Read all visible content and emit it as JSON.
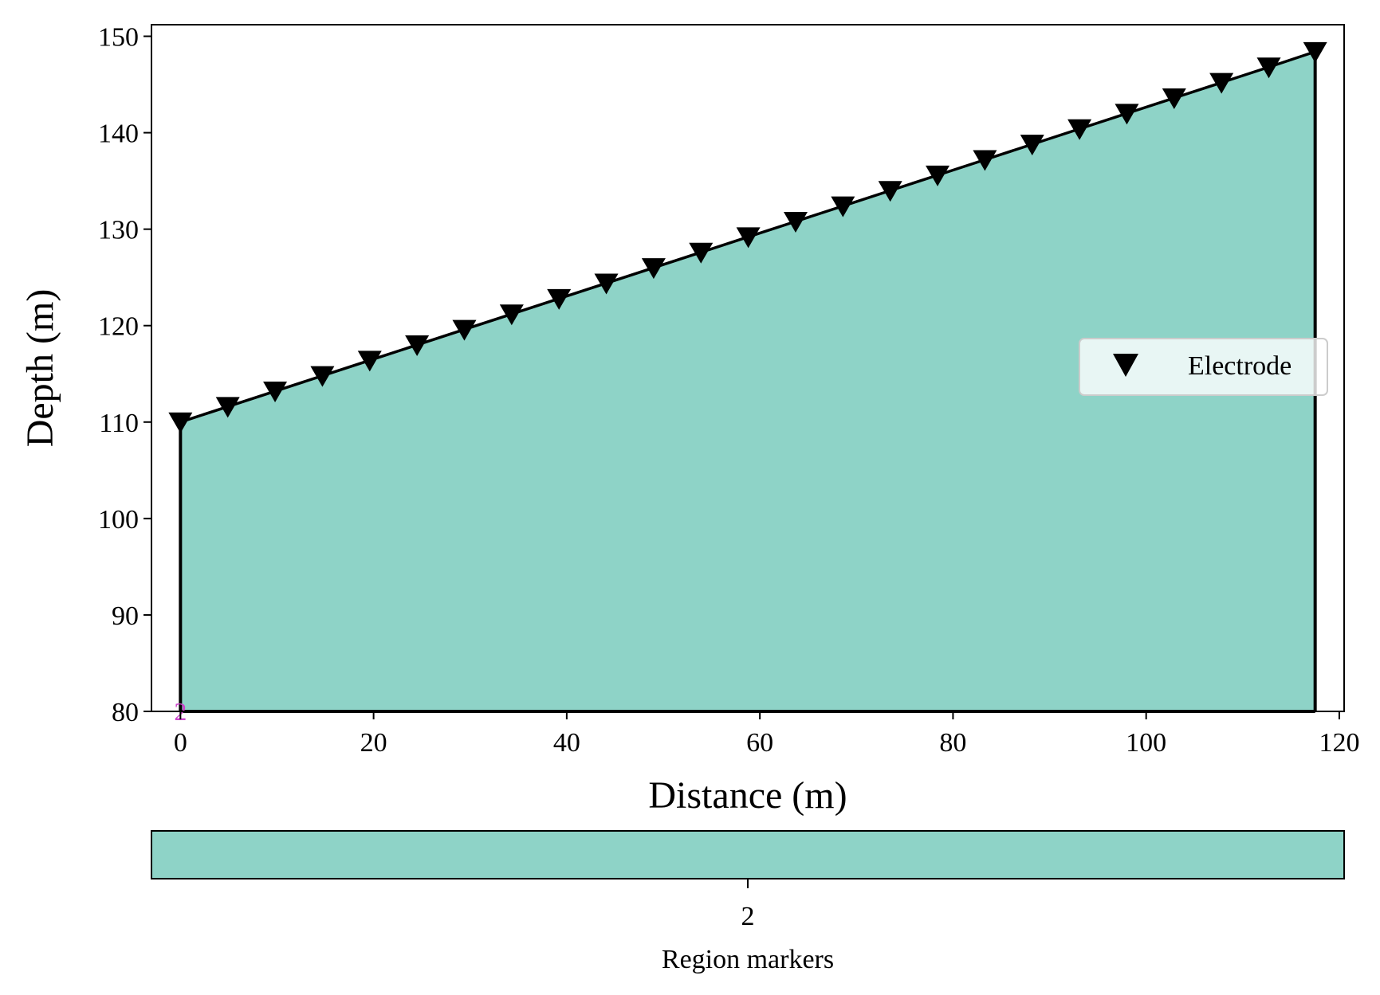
{
  "chart_data": {
    "type": "area",
    "xlabel": "Distance (m)",
    "ylabel": "Depth (m)",
    "xlim": [
      -3,
      120.5
    ],
    "ylim": [
      80,
      151.2
    ],
    "xticks": [
      0,
      20,
      40,
      60,
      80,
      100,
      120
    ],
    "xtick_labels": [
      "0",
      "20",
      "40",
      "60",
      "80",
      "100",
      "120"
    ],
    "yticks": [
      80,
      90,
      100,
      110,
      120,
      130,
      140,
      150
    ],
    "ytick_labels": [
      "80",
      "90",
      "100",
      "110",
      "120",
      "130",
      "140",
      "150"
    ],
    "grid": false,
    "region": {
      "marker": "2",
      "fill_color": "#8ed3c7",
      "bottom_depth": 80,
      "outline_color": "#000000"
    },
    "series": [
      {
        "name": "Electrode",
        "marker": "triangle-down",
        "color": "#000000",
        "x": [
          0,
          4.9,
          9.8,
          14.7,
          19.6,
          24.5,
          29.4,
          34.3,
          39.2,
          44.1,
          49.0,
          53.9,
          58.8,
          63.7,
          68.6,
          73.5,
          78.4,
          83.3,
          88.2,
          93.1,
          98.0,
          102.9,
          107.8,
          112.7,
          117.5
        ],
        "y": [
          110.0,
          111.6,
          113.2,
          114.8,
          116.4,
          118.0,
          119.6,
          121.2,
          122.8,
          124.4,
          126.0,
          127.6,
          129.2,
          130.8,
          132.4,
          134.0,
          135.6,
          137.2,
          138.8,
          140.4,
          142.0,
          143.6,
          145.2,
          146.8,
          148.4
        ]
      }
    ],
    "region_marker_label": {
      "text": "2",
      "color": "#cc44cc",
      "x": 0,
      "y": 80
    },
    "legend": {
      "placement": "center-right",
      "entries": [
        "Electrode"
      ]
    },
    "colorbar": {
      "orientation": "horizontal",
      "color": "#8ed3c7",
      "ticks": [
        "2"
      ],
      "label": "Region markers"
    }
  }
}
